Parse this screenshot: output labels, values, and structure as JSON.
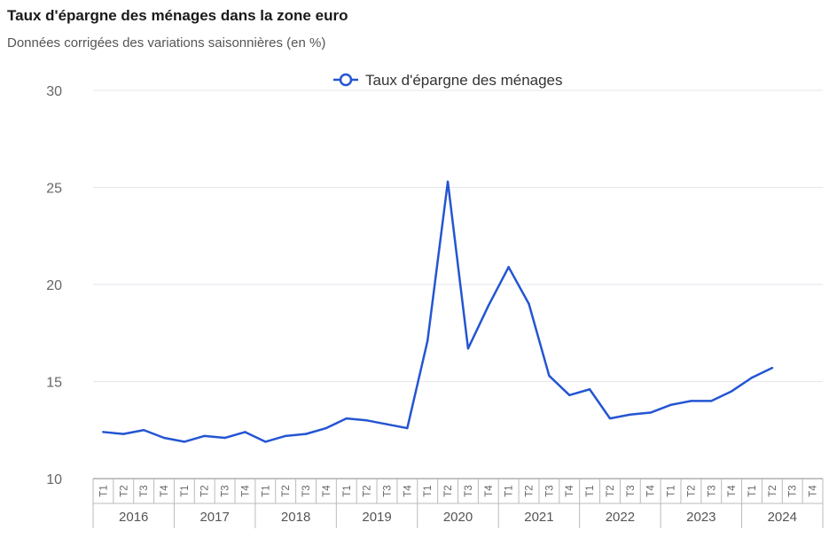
{
  "chart_data": {
    "type": "line",
    "title": "Taux d'épargne des ménages dans la zone euro",
    "subtitle": "Données corrigées des variations saisonnières (en %)",
    "xlabel": "",
    "ylabel": "",
    "ylim": [
      10,
      30
    ],
    "yticks": [
      10,
      15,
      20,
      25,
      30
    ],
    "grid": true,
    "legend_position": "top-center",
    "years": [
      "2016",
      "2017",
      "2018",
      "2019",
      "2020",
      "2021",
      "2022",
      "2023",
      "2024"
    ],
    "quarters": [
      "T1",
      "T2",
      "T3",
      "T4"
    ],
    "color": "#2455d2",
    "series": [
      {
        "name": "Taux d'épargne des ménages",
        "values": [
          12.4,
          12.3,
          12.5,
          12.1,
          11.9,
          12.2,
          12.1,
          12.4,
          11.9,
          12.2,
          12.3,
          12.6,
          13.1,
          13.0,
          12.8,
          12.6,
          17.1,
          25.3,
          16.7,
          18.9,
          20.9,
          19.0,
          15.3,
          14.3,
          14.6,
          13.1,
          13.3,
          13.4,
          13.8,
          14.0,
          14.0,
          14.5,
          15.2,
          15.7,
          null,
          null
        ]
      }
    ]
  }
}
